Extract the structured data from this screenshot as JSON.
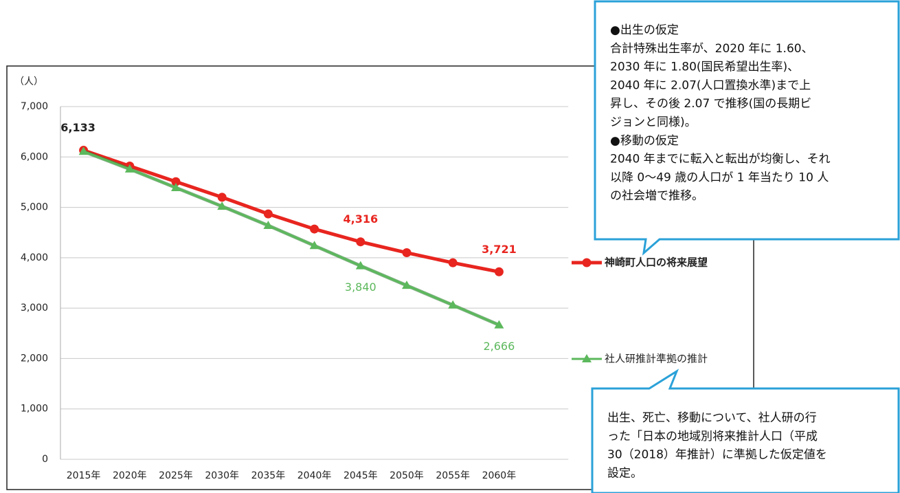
{
  "chart_data": {
    "type": "line",
    "y_unit": "（人）",
    "categories": [
      "2015年",
      "2020年",
      "2025年",
      "2030年",
      "2035年",
      "2040年",
      "2045年",
      "2050年",
      "2055年",
      "2060年"
    ],
    "series": [
      {
        "name": "神崎町人口の将来展望",
        "color": "#e8251f",
        "marker": "circle",
        "values": [
          6133,
          5820,
          5510,
          5200,
          4870,
          4570,
          4316,
          4100,
          3900,
          3721
        ],
        "value_labels": [
          "6,133",
          null,
          null,
          null,
          null,
          null,
          "4,316",
          null,
          null,
          "3,721"
        ]
      },
      {
        "name": "社人研推計準拠の推計",
        "color": "#5cb85c",
        "marker": "triangle",
        "values": [
          6110,
          5760,
          5390,
          5020,
          4640,
          4240,
          3840,
          3450,
          3060,
          2666
        ],
        "value_labels": [
          null,
          null,
          null,
          null,
          null,
          null,
          "3,840",
          null,
          null,
          "2,666"
        ]
      }
    ],
    "ylim": [
      0,
      7000
    ],
    "yticks": [
      0,
      {
        "value": 1000,
        "label": "1,000"
      },
      {
        "value": 2000,
        "label": "2,000"
      },
      {
        "value": 3000,
        "label": "3,000"
      },
      {
        "value": 4000,
        "label": "4,000"
      },
      {
        "value": 5000,
        "label": "5,000"
      },
      {
        "value": 6000,
        "label": "6,000"
      },
      {
        "value": 7000,
        "label": "7,000"
      }
    ],
    "grid": true,
    "legend": "right",
    "callouts": [
      {
        "lines": [
          "●出生の仮定",
          "合計特殊出生率が、2020 年に 1.60、",
          "2030 年に 1.80(国民希望出生率)、",
          "2040 年に 2.07(人口置換水準)まで上",
          "昇し、その後 2.07 で推移(国の長期ビ",
          "ジョンと同様)。",
          "●移動の仮定",
          "2040 年までに転入と転出が均衡し、それ",
          "以降 0～49 歳の人口が 1 年当たり 10 人",
          "の社会増で推移。"
        ]
      },
      {
        "lines": [
          "出生、死亡、移動について、社人研の行",
          "った「日本の地域別将来推計人口（平成",
          "30（2018）年推計）に準拠した仮定値を",
          "設定。"
        ]
      }
    ]
  }
}
